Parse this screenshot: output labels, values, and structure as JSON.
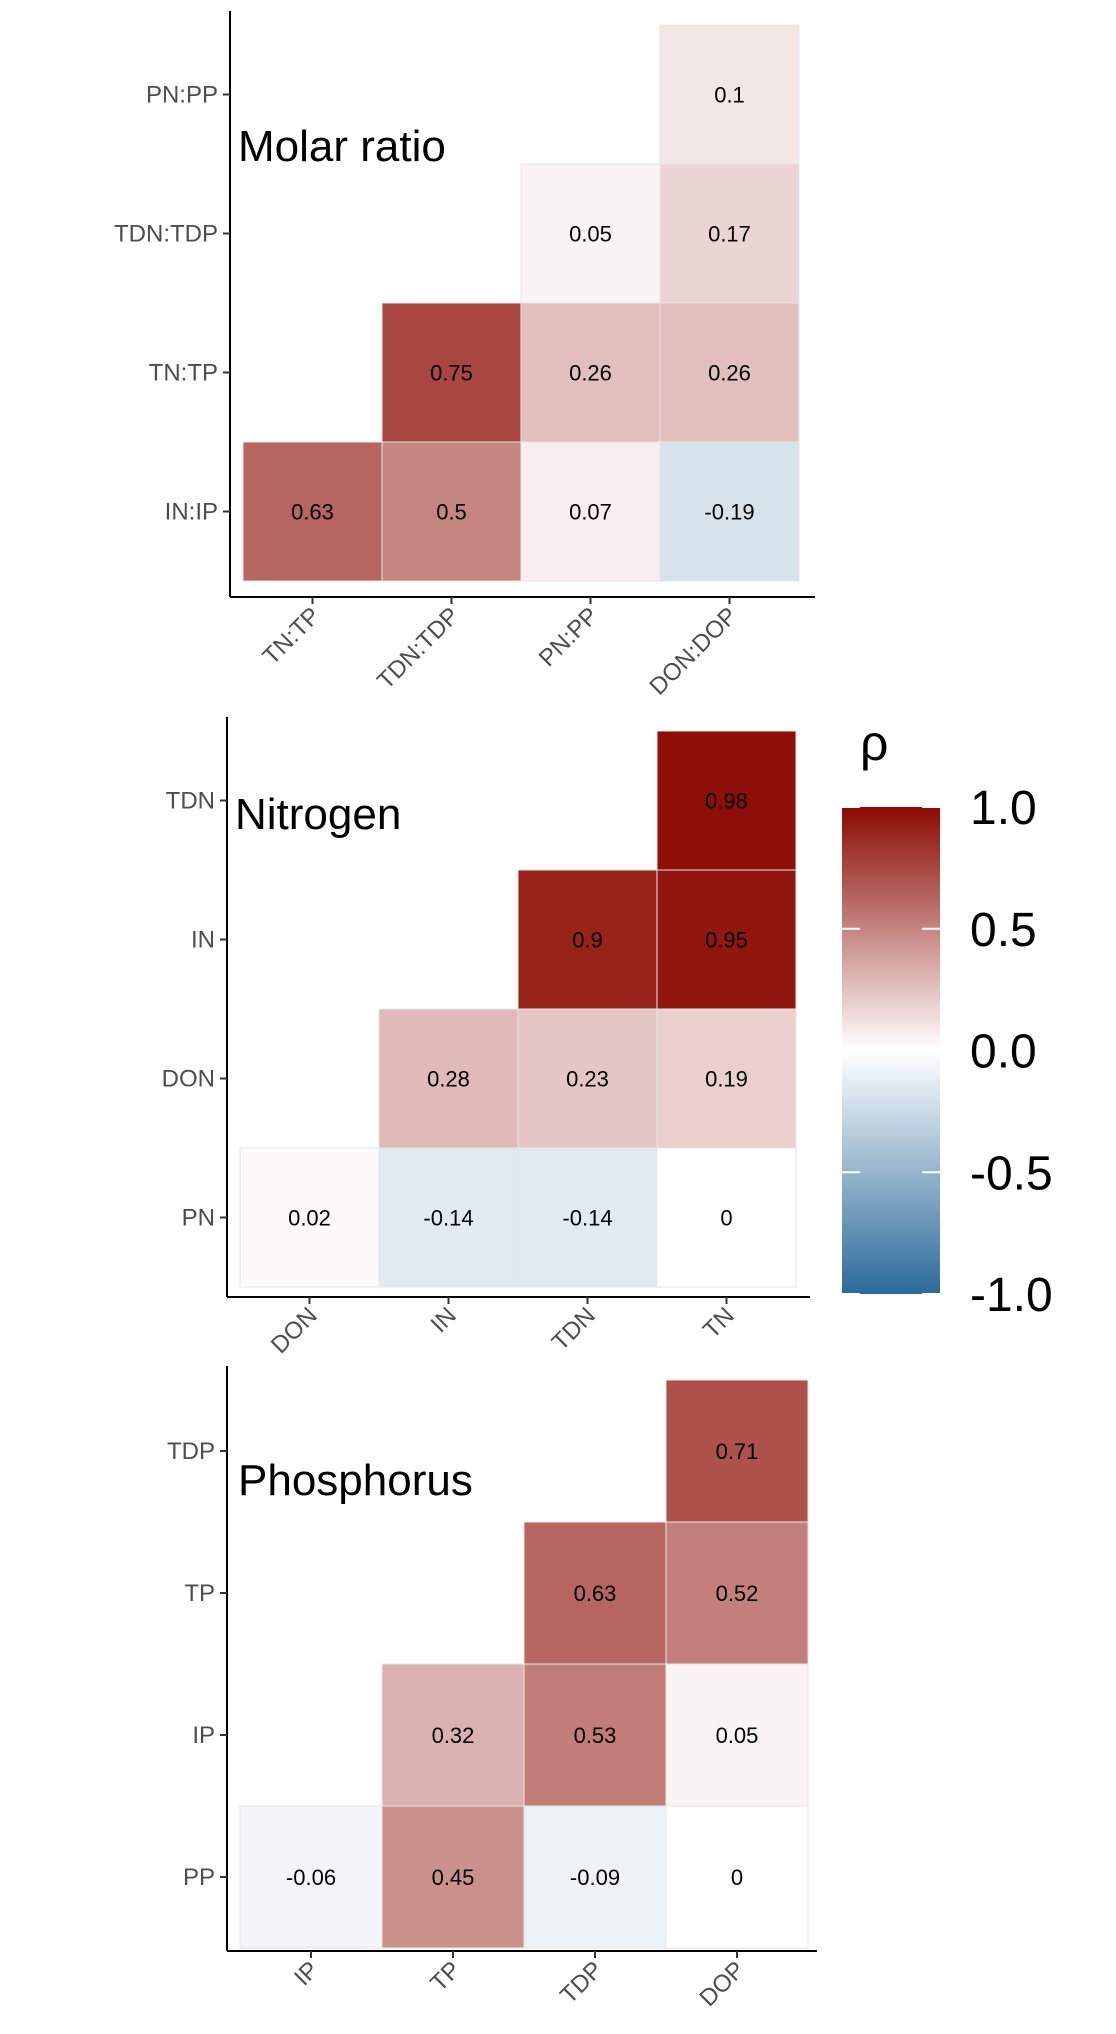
{
  "legend": {
    "title": "ρ",
    "ticks": [
      "1.0",
      "0.5",
      "0.0",
      "-0.5",
      "-1.0"
    ],
    "tick_values": [
      1.0,
      0.5,
      0.0,
      -0.5,
      -1.0
    ],
    "low_color": "#2c6a9a",
    "mid_color": "#ffffff",
    "high_color": "#8b0a02"
  },
  "chart_data": [
    {
      "type": "heatmap",
      "title": "Molar ratio",
      "x": [
        "TN:TP",
        "TDN:TDP",
        "PN:PP",
        "DON:DOP"
      ],
      "y": [
        "IN:IP",
        "TN:TP",
        "TDN:TDP",
        "PN:PP"
      ],
      "cells": [
        {
          "x": "TN:TP",
          "y": "IN:IP",
          "value": 0.63
        },
        {
          "x": "TDN:TDP",
          "y": "IN:IP",
          "value": 0.5
        },
        {
          "x": "PN:PP",
          "y": "IN:IP",
          "value": 0.07
        },
        {
          "x": "DON:DOP",
          "y": "IN:IP",
          "value": -0.19
        },
        {
          "x": "TDN:TDP",
          "y": "TN:TP",
          "value": 0.75
        },
        {
          "x": "PN:PP",
          "y": "TN:TP",
          "value": 0.26
        },
        {
          "x": "DON:DOP",
          "y": "TN:TP",
          "value": 0.26
        },
        {
          "x": "PN:PP",
          "y": "TDN:TDP",
          "value": 0.05
        },
        {
          "x": "DON:DOP",
          "y": "TDN:TDP",
          "value": 0.17
        },
        {
          "x": "DON:DOP",
          "y": "PN:PP",
          "value": 0.1
        }
      ]
    },
    {
      "type": "heatmap",
      "title": "Nitrogen",
      "x": [
        "DON",
        "IN",
        "TDN",
        "TN"
      ],
      "y": [
        "PN",
        "DON",
        "IN",
        "TDN"
      ],
      "cells": [
        {
          "x": "DON",
          "y": "PN",
          "value": 0.02
        },
        {
          "x": "IN",
          "y": "PN",
          "value": -0.14
        },
        {
          "x": "TDN",
          "y": "PN",
          "value": -0.14
        },
        {
          "x": "TN",
          "y": "PN",
          "value": 0
        },
        {
          "x": "IN",
          "y": "DON",
          "value": 0.28
        },
        {
          "x": "TDN",
          "y": "DON",
          "value": 0.23
        },
        {
          "x": "TN",
          "y": "DON",
          "value": 0.19
        },
        {
          "x": "TDN",
          "y": "IN",
          "value": 0.9
        },
        {
          "x": "TN",
          "y": "IN",
          "value": 0.95
        },
        {
          "x": "TN",
          "y": "TDN",
          "value": 0.98
        }
      ]
    },
    {
      "type": "heatmap",
      "title": "Phosphorus",
      "x": [
        "IP",
        "TP",
        "TDP",
        "DOP"
      ],
      "y": [
        "PP",
        "IP",
        "TP",
        "TDP"
      ],
      "cells": [
        {
          "x": "IP",
          "y": "PP",
          "value": -0.06
        },
        {
          "x": "TP",
          "y": "PP",
          "value": 0.45
        },
        {
          "x": "TDP",
          "y": "PP",
          "value": -0.09
        },
        {
          "x": "DOP",
          "y": "PP",
          "value": 0
        },
        {
          "x": "TP",
          "y": "IP",
          "value": 0.32
        },
        {
          "x": "TDP",
          "y": "IP",
          "value": 0.53
        },
        {
          "x": "DOP",
          "y": "IP",
          "value": 0.05
        },
        {
          "x": "TDP",
          "y": "TP",
          "value": 0.63
        },
        {
          "x": "DOP",
          "y": "TP",
          "value": 0.52
        },
        {
          "x": "DOP",
          "y": "TDP",
          "value": 0.71
        }
      ]
    }
  ]
}
